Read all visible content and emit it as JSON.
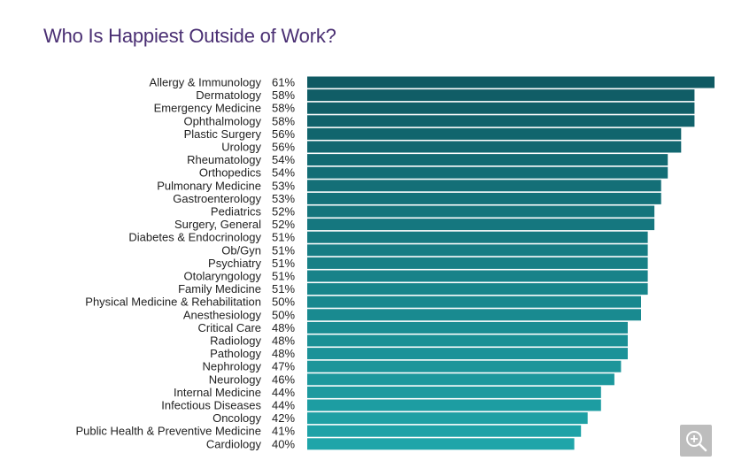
{
  "chart_data": {
    "type": "bar",
    "orientation": "horizontal",
    "title": "Who Is Happiest Outside of Work?",
    "categories": [
      "Allergy & Immunology",
      "Dermatology",
      "Emergency Medicine",
      "Ophthalmology",
      "Plastic Surgery",
      "Urology",
      "Rheumatology",
      "Orthopedics",
      "Pulmonary Medicine",
      "Gastroenterology",
      "Pediatrics",
      "Surgery, General",
      "Diabetes & Endocrinology",
      "Ob/Gyn",
      "Psychiatry",
      "Otolaryngology",
      "Family Medicine",
      "Physical Medicine & Rehabilitation",
      "Anesthesiology",
      "Critical Care",
      "Radiology",
      "Pathology",
      "Nephrology",
      "Neurology",
      "Internal Medicine",
      "Infectious Diseases",
      "Oncology",
      "Public Health & Preventive Medicine",
      "Cardiology"
    ],
    "values": [
      61,
      58,
      58,
      58,
      56,
      56,
      54,
      54,
      53,
      53,
      52,
      52,
      51,
      51,
      51,
      51,
      51,
      50,
      50,
      48,
      48,
      48,
      47,
      46,
      44,
      44,
      42,
      41,
      40
    ],
    "value_suffix": "%",
    "gradient_colors": [
      "#0f5a63",
      "#1fa5a9"
    ]
  },
  "controls": {
    "zoom_icon": "zoom-in-icon"
  }
}
